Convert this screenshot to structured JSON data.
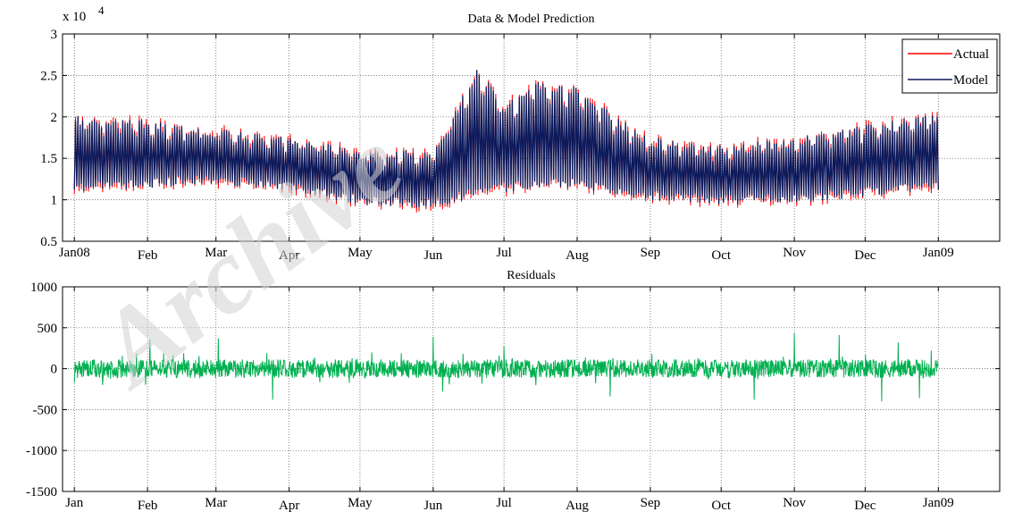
{
  "watermark": "Archive",
  "chart_data": [
    {
      "type": "line",
      "title": "Data & Model Prediction",
      "y_multiplier_label": "x 10",
      "y_multiplier_exponent": "4",
      "ylim": [
        0.5,
        3
      ],
      "yticks": [
        0.5,
        1,
        1.5,
        2,
        2.5,
        3
      ],
      "ytick_labels": [
        "0.5",
        "1",
        "1.5",
        "2",
        "2.5",
        "3"
      ],
      "xlim": [
        "2007-12-27",
        "2009-01-27"
      ],
      "xticks": [
        "2008-01-01",
        "2008-02-01",
        "2008-03-01",
        "2008-04-01",
        "2008-05-01",
        "2008-06-01",
        "2008-07-01",
        "2008-08-01",
        "2008-09-01",
        "2008-10-01",
        "2008-11-01",
        "2008-12-01",
        "2009-01-01"
      ],
      "xtick_labels": [
        "Jan08",
        "Feb",
        "Mar",
        "Apr",
        "May",
        "Jun",
        "Jul",
        "Aug",
        "Sep",
        "Oct",
        "Nov",
        "Dec",
        "Jan09"
      ],
      "grid": true,
      "legend": "top-right",
      "series": [
        {
          "name": "Actual",
          "color": "#ff0000",
          "level_dates": [
            "2008-01-01",
            "2008-02-01",
            "2008-03-01",
            "2008-04-01",
            "2008-05-01",
            "2008-06-01",
            "2008-06-20",
            "2008-07-01",
            "2008-07-15",
            "2008-08-01",
            "2008-08-20",
            "2008-09-01",
            "2008-10-01",
            "2008-11-01",
            "2008-12-01",
            "2009-01-01"
          ],
          "daily_max": [
            1.95,
            1.9,
            1.8,
            1.7,
            1.55,
            1.55,
            2.55,
            2.1,
            2.4,
            2.3,
            1.9,
            1.7,
            1.6,
            1.7,
            1.85,
            2.0
          ],
          "daily_min": [
            1.15,
            1.2,
            1.25,
            1.15,
            1.0,
            0.95,
            1.1,
            1.15,
            1.2,
            1.2,
            1.1,
            1.05,
            1.0,
            1.0,
            1.1,
            1.15
          ]
        },
        {
          "name": "Model",
          "color": "#0b1a5c",
          "level_dates": [
            "2008-01-01",
            "2008-02-01",
            "2008-03-01",
            "2008-04-01",
            "2008-05-01",
            "2008-06-01",
            "2008-06-20",
            "2008-07-01",
            "2008-07-15",
            "2008-08-01",
            "2008-08-20",
            "2008-09-01",
            "2008-10-01",
            "2008-11-01",
            "2008-12-01",
            "2009-01-01"
          ],
          "daily_max": [
            1.95,
            1.9,
            1.8,
            1.7,
            1.55,
            1.55,
            2.55,
            2.1,
            2.4,
            2.3,
            1.9,
            1.7,
            1.6,
            1.7,
            1.85,
            2.0
          ],
          "daily_min": [
            1.15,
            1.2,
            1.25,
            1.15,
            1.0,
            0.95,
            1.1,
            1.15,
            1.2,
            1.2,
            1.1,
            1.05,
            1.0,
            1.0,
            1.1,
            1.15
          ]
        }
      ]
    },
    {
      "type": "line",
      "title": "Residuals",
      "ylim": [
        -1500,
        1000
      ],
      "yticks": [
        -1500,
        -1000,
        -500,
        0,
        500,
        1000
      ],
      "ytick_labels": [
        "-1500",
        "-1000",
        "-500",
        "0",
        "500",
        "1000"
      ],
      "xlim": [
        "2007-12-27",
        "2009-01-27"
      ],
      "xticks": [
        "2008-01-01",
        "2008-02-01",
        "2008-03-01",
        "2008-04-01",
        "2008-05-01",
        "2008-06-01",
        "2008-07-01",
        "2008-08-01",
        "2008-09-01",
        "2008-10-01",
        "2008-11-01",
        "2008-12-01",
        "2009-01-01"
      ],
      "xtick_labels": [
        "Jan",
        "Feb",
        "Mar",
        "Apr",
        "May",
        "Jun",
        "Jul",
        "Aug",
        "Sep",
        "Oct",
        "Nov",
        "Dec",
        "Jan09"
      ],
      "grid": true,
      "series": [
        {
          "name": "",
          "color": "#00b050",
          "date_range": [
            "2008-01-01",
            "2009-01-01"
          ],
          "typical_range": [
            -150,
            150
          ],
          "spikes": [
            {
              "date": "2008-01-01",
              "value": 350
            },
            {
              "date": "2008-01-01",
              "value": -170
            },
            {
              "date": "2008-02-02",
              "value": 360
            },
            {
              "date": "2008-03-02",
              "value": 370
            },
            {
              "date": "2008-03-25",
              "value": -380
            },
            {
              "date": "2008-06-01",
              "value": 390
            },
            {
              "date": "2008-06-05",
              "value": -280
            },
            {
              "date": "2008-07-01",
              "value": 280
            },
            {
              "date": "2008-08-15",
              "value": -340
            },
            {
              "date": "2008-11-01",
              "value": 430
            },
            {
              "date": "2008-11-20",
              "value": 410
            },
            {
              "date": "2008-10-15",
              "value": -380
            },
            {
              "date": "2008-12-08",
              "value": -400
            },
            {
              "date": "2008-12-15",
              "value": 320
            },
            {
              "date": "2008-12-24",
              "value": -360
            },
            {
              "date": "2008-12-29",
              "value": 220
            }
          ]
        }
      ]
    }
  ]
}
